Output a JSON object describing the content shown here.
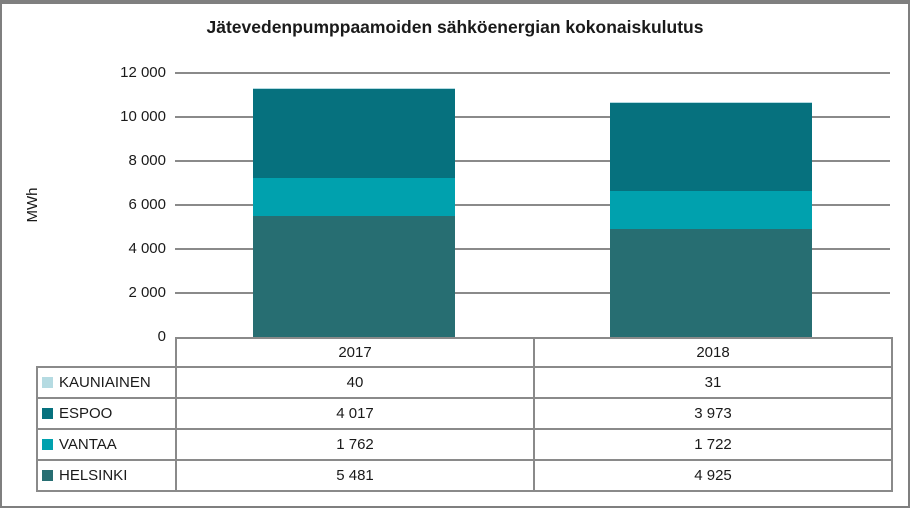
{
  "chart_data": {
    "type": "bar",
    "stacked": true,
    "title": "Jätevedenpumppaamoiden sähköenergian kokonaiskulutus",
    "ylabel": "MWh",
    "ylim": [
      0,
      12000
    ],
    "grid": true,
    "legend_position": "table-left",
    "categories": [
      "2017",
      "2018"
    ],
    "series": [
      {
        "name": "HELSINKI",
        "color": "#276e72",
        "values": [
          5481,
          4925
        ],
        "labels": [
          "5 481",
          "4 925"
        ]
      },
      {
        "name": "VANTAA",
        "color": "#00a1ae",
        "values": [
          1762,
          1722
        ],
        "labels": [
          "1 762",
          "1 722"
        ]
      },
      {
        "name": "ESPOO",
        "color": "#06717e",
        "values": [
          4017,
          3973
        ],
        "labels": [
          "4 017",
          "3 973"
        ]
      },
      {
        "name": "KAUNIAINEN",
        "color": "#b5dbe2",
        "values": [
          40,
          31
        ],
        "labels": [
          "40",
          "31"
        ]
      }
    ],
    "yticks": [
      {
        "value": 0,
        "label": "0"
      },
      {
        "value": 2000,
        "label": "2 000"
      },
      {
        "value": 4000,
        "label": "4 000"
      },
      {
        "value": 6000,
        "label": "6 000"
      },
      {
        "value": 8000,
        "label": "8 000"
      },
      {
        "value": 10000,
        "label": "10 000"
      },
      {
        "value": 12000,
        "label": "12 000"
      }
    ],
    "table_display_order": [
      "KAUNIAINEN",
      "ESPOO",
      "VANTAA",
      "HELSINKI"
    ]
  }
}
